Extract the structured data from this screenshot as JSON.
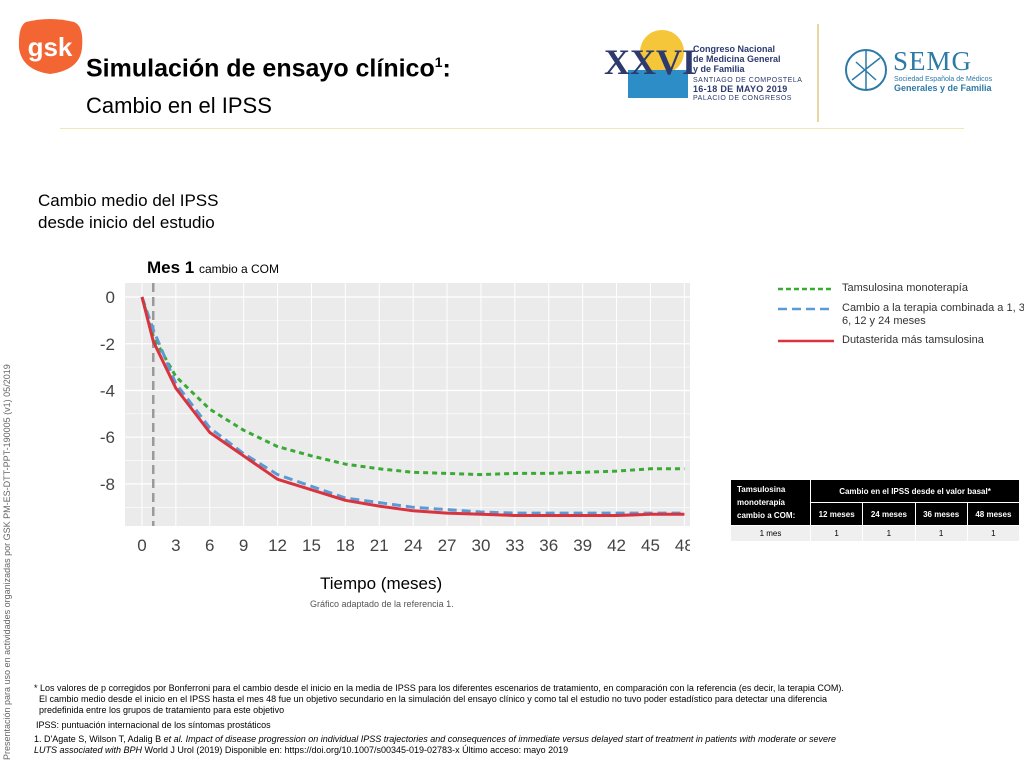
{
  "side_note": "Presentación para uso en actividades organizadas por GSK  PM-ES-DTT-PPT-190005 (v1) 05/2019",
  "brand": {
    "logo_text": "gsk",
    "logo_color": "#f36633"
  },
  "header": {
    "title": "Simulación de ensayo clínico",
    "title_sup": "1",
    "title_suffix": ":",
    "subtitle": "Cambio en el IPSS"
  },
  "congress": {
    "numeral": "XXVI",
    "name_line1": "Congreso Nacional",
    "name_line2": "de Medicina General",
    "name_line3": "y de Familia",
    "city": "SANTIAGO DE COMPOSTELA",
    "dates": "16-18 DE MAYO 2019",
    "venue": "PALACIO DE CONGRESOS"
  },
  "semg": {
    "name": "SEMG",
    "sub1": "Sociedad Española de Médicos",
    "sub2": "Generales y de Familia"
  },
  "chart_heading_line1": "Cambio medio del IPSS",
  "chart_heading_line2": "desde inicio del estudio",
  "mes1_label": "Mes 1",
  "mes1_sub": "cambio a COM",
  "x_title": "Tiempo (meses)",
  "adapted_note": "Gráfico adaptado de la referencia 1.",
  "legend": [
    {
      "label": "Tamsulosina monoterapía",
      "color": "#3aaa35",
      "style": "dotted"
    },
    {
      "label": "Cambio a la terapia combinada a 1, 3, 6, 12 y 24 meses",
      "color": "#5b9bd5",
      "style": "dashed"
    },
    {
      "label": "Dutasterida más tamsulosina",
      "color": "#d9333f",
      "style": "solid"
    }
  ],
  "chart_data": {
    "type": "line",
    "xlabel": "Tiempo (meses)",
    "ylabel": "",
    "x_ticks": [
      0,
      3,
      6,
      9,
      12,
      15,
      18,
      21,
      24,
      27,
      30,
      33,
      36,
      39,
      42,
      45,
      48
    ],
    "y_ticks": [
      0,
      -2,
      -4,
      -6,
      -8
    ],
    "xlim": [
      -1.5,
      48.5
    ],
    "ylim": [
      -9.8,
      0.6
    ],
    "vline_x": 1,
    "grid": true,
    "series": [
      {
        "name": "Tamsulosina monoterapía",
        "color": "#3aaa35",
        "dash": "5,4",
        "x": [
          0,
          1,
          3,
          6,
          9,
          12,
          15,
          18,
          21,
          24,
          27,
          30,
          33,
          36,
          39,
          42,
          45,
          48
        ],
        "y": [
          0,
          -1.7,
          -3.4,
          -4.8,
          -5.7,
          -6.4,
          -6.8,
          -7.15,
          -7.35,
          -7.5,
          -7.55,
          -7.6,
          -7.55,
          -7.55,
          -7.5,
          -7.45,
          -7.35,
          -7.35
        ]
      },
      {
        "name": "Cambio a la terapia combinada a 1, 3, 6, 12 y 24 meses",
        "color": "#5b9bd5",
        "dash": "9,5",
        "x": [
          0,
          1,
          3,
          6,
          9,
          12,
          15,
          18,
          21,
          24,
          27,
          30,
          33,
          36,
          39,
          42,
          45,
          48
        ],
        "y": [
          0,
          -1.4,
          -3.7,
          -5.6,
          -6.7,
          -7.6,
          -8.1,
          -8.6,
          -8.8,
          -9.0,
          -9.1,
          -9.2,
          -9.25,
          -9.25,
          -9.25,
          -9.25,
          -9.25,
          -9.25
        ]
      },
      {
        "name": "Dutasterida más tamsulosina",
        "color": "#d9333f",
        "dash": "",
        "x": [
          0,
          1,
          3,
          6,
          9,
          12,
          15,
          18,
          21,
          24,
          27,
          30,
          33,
          36,
          39,
          42,
          45,
          48
        ],
        "y": [
          0,
          -1.9,
          -3.9,
          -5.8,
          -6.8,
          -7.8,
          -8.25,
          -8.7,
          -8.95,
          -9.15,
          -9.25,
          -9.3,
          -9.35,
          -9.35,
          -9.35,
          -9.35,
          -9.3,
          -9.3
        ]
      }
    ]
  },
  "table": {
    "row_header": "Tamsulosina monoterapía cambio a COM:",
    "group_header": "Cambio en el IPSS desde el valor basal*",
    "columns": [
      "12 meses",
      "24 meses",
      "36 meses",
      "48 meses"
    ],
    "rows": [
      {
        "label": "1 mes",
        "values": [
          "1",
          "1",
          "1",
          "1"
        ]
      }
    ]
  },
  "footnote_line1": "* Los valores de p corregidos por Bonferroni para el cambio desde el inicio en la media de IPSS para los diferentes escenarios de tratamiento, en comparación con la referencia (es decir, la terapia COM).",
  "footnote_line2": "El cambio medio desde el inicio en el IPSS hasta el mes 48 fue un objetivo secundario en la simulación del ensayo clínico y como tal el estudio no tuvo poder estadístico para detectar una diferencia",
  "footnote_line3": "predefinida entre los grupos de tratamiento para este objetivo",
  "ipss_definition": "IPSS: puntuación internacional de los síntomas prostáticos",
  "reference_authors": "1. D'Agate S, Wilson T, Adalig B ",
  "reference_etal": "et al. Impact of disease progression on individual IPSS trajectories and consequences of immediate versus delayed start of treatment in patients with moderate or severe",
  "reference_line2_italic": "LUTS associated with BPH",
  "reference_line2_rest": "  World J Urol (2019) Disponible en: https://doi.org/10.1007/s00345-019-02783-x Último acceso: mayo 2019"
}
